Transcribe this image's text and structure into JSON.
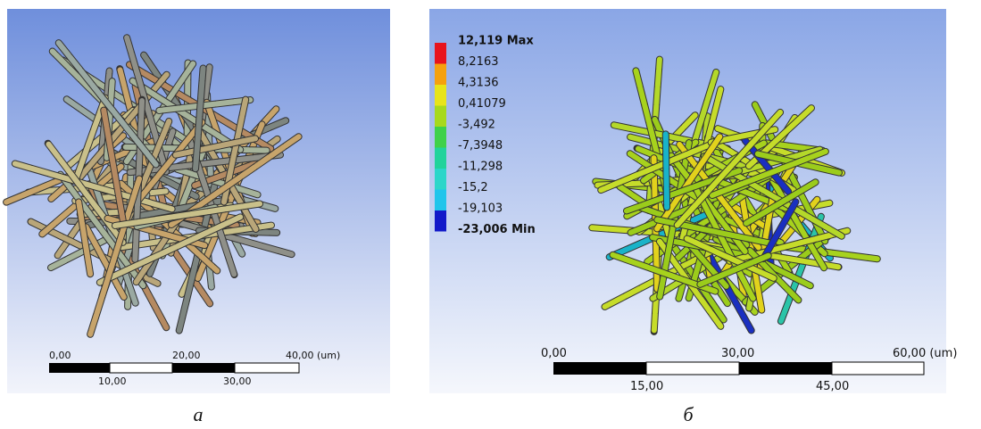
{
  "panels": [
    {
      "caption": "а",
      "scale": {
        "top": [
          "0,00",
          "20,00",
          "40,00 (um)"
        ],
        "bottom": [
          "10,00",
          "30,00"
        ]
      }
    },
    {
      "caption": "б",
      "legend": [
        "12,119 Max",
        "8,2163",
        "4,3136",
        "0,41079",
        "-3,492",
        "-7,3948",
        "-11,298",
        "-15,2",
        "-19,103",
        "-23,006 Min"
      ],
      "scale": {
        "top": [
          "0,00",
          "30,00",
          "60,00 (um)"
        ],
        "bottom": [
          "15,00",
          "45,00"
        ]
      }
    }
  ]
}
